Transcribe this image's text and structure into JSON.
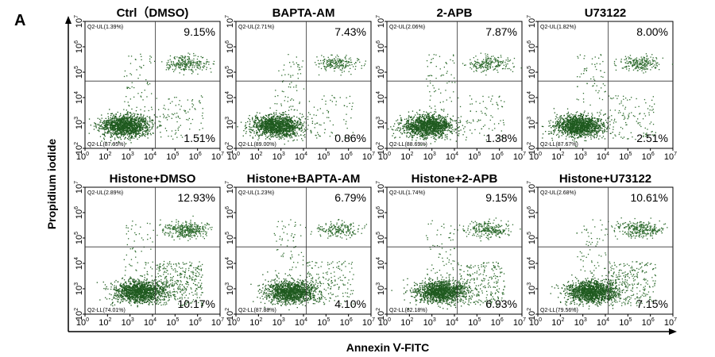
{
  "figure": {
    "panel_letter": "A",
    "y_axis_title": "Propidium iodide",
    "x_axis_title": "Annexin Ⅴ-FITC"
  },
  "chart_data": {
    "type": "scatter",
    "axis_scale": "log",
    "x_ticks": [
      "0",
      "2",
      "3",
      "4",
      "5",
      "6",
      "7"
    ],
    "y_ticks": [
      "2",
      "3",
      "4",
      "5",
      "6",
      "7"
    ],
    "tick_base": "10",
    "panels": [
      {
        "title": "Ctrl（DMSO)",
        "ul_label": "Q2-UL(1.39%)",
        "ll_label": "Q2-LL(87.95%)",
        "ur_pct": "9.15%",
        "lr_pct": "1.51%",
        "ur_value": 9.15,
        "lr_value": 1.51
      },
      {
        "title": "BAPTA-AM",
        "ul_label": "Q2-UL(2.71%)",
        "ll_label": "Q2-LL(89.00%)",
        "ur_pct": "7.43%",
        "lr_pct": "0.86%",
        "ur_value": 7.43,
        "lr_value": 0.86
      },
      {
        "title": "2-APB",
        "ul_label": "Q2-UL(2.06%)",
        "ll_label": "Q2-LL(88.69%)",
        "ur_pct": "7.87%",
        "lr_pct": "1.38%",
        "ur_value": 7.87,
        "lr_value": 1.38
      },
      {
        "title": "U73122",
        "ul_label": "Q2-UL(1.82%)",
        "ll_label": "Q2-LL(87.67%)",
        "ur_pct": "8.00%",
        "lr_pct": "2.51%",
        "ur_value": 8.0,
        "lr_value": 2.51
      },
      {
        "title": "Histone+DMSO",
        "ul_label": "Q2-UL(2.89%)",
        "ll_label": "Q2-LL(74.01%)",
        "ur_pct": "12.93%",
        "lr_pct": "10.17%",
        "ur_value": 12.93,
        "lr_value": 10.17
      },
      {
        "title": "Histone+BAPTA-AM",
        "ul_label": "Q2-UL(1.23%)",
        "ll_label": "Q2-LL(87.88%)",
        "ur_pct": "6.79%",
        "lr_pct": "4.10%",
        "ur_value": 6.79,
        "lr_value": 4.1
      },
      {
        "title": "Histone+2-APB",
        "ul_label": "Q2-UL(1.74%)",
        "ll_label": "Q2-LL(82.18%)",
        "ur_pct": "9.15%",
        "lr_pct": "6.93%",
        "ur_value": 9.15,
        "lr_value": 6.93
      },
      {
        "title": "Histone+U73122",
        "ul_label": "Q2-UL(2.68%)",
        "ll_label": "Q2-LL(79.56%)",
        "ur_pct": "10.61%",
        "lr_pct": "7.15%",
        "ur_value": 10.61,
        "lr_value": 7.15
      }
    ],
    "colors": {
      "dots": "#2e6b2e",
      "dense": "#1f5a1f",
      "axis": "#000000"
    }
  }
}
